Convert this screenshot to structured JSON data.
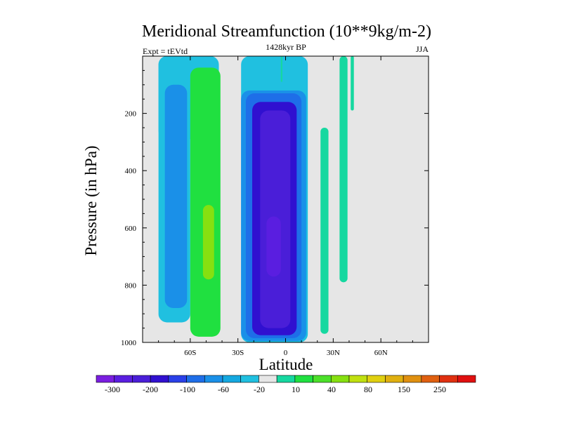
{
  "chart_data": {
    "type": "contour",
    "title": "Meridional Streamfunction (10**9kg/m-2)",
    "left_label": "Expt = tEVtd",
    "center_label": "1428kyr BP",
    "right_label": "JJA",
    "xlabel": "Latitude",
    "ylabel": "Pressure (in hPa)",
    "xlim": [
      -90,
      90
    ],
    "ylim": [
      1000,
      0
    ],
    "x_ticks": [
      {
        "value": -60,
        "label": "60S"
      },
      {
        "value": -30,
        "label": "30S"
      },
      {
        "value": 0,
        "label": "0"
      },
      {
        "value": 30,
        "label": "30N"
      },
      {
        "value": 60,
        "label": "60N"
      }
    ],
    "y_ticks": [
      {
        "value": 200,
        "label": "200"
      },
      {
        "value": 400,
        "label": "400"
      },
      {
        "value": 600,
        "label": "600"
      },
      {
        "value": 800,
        "label": "800"
      },
      {
        "value": 1000,
        "label": "1000"
      }
    ],
    "background_color": "#e6e6e6",
    "colorbar": {
      "colors": [
        "#7a1ee0",
        "#5a1ee0",
        "#4a1ed8",
        "#3010d0",
        "#2a40e8",
        "#1e6ee8",
        "#1a90e8",
        "#14a8e0",
        "#20c0e0",
        "#e6e6e6",
        "#16d8a0",
        "#20e040",
        "#4ce02a",
        "#86e010",
        "#c0e010",
        "#e0d010",
        "#e0b010",
        "#e09010",
        "#e06010",
        "#e03010",
        "#e01010"
      ],
      "labels": [
        "-300",
        "-200",
        "-100",
        "-60",
        "-20",
        "10",
        "40",
        "80",
        "150",
        "250"
      ]
    },
    "regions": [
      {
        "name": "sh-upper-cyan",
        "lat": [
          -80,
          -42
        ],
        "p": [
          0,
          290
        ],
        "color": "#20c0e0"
      },
      {
        "name": "sh-outer-cyan",
        "lat": [
          -80,
          -60
        ],
        "p": [
          0,
          930
        ],
        "color": "#20c0e0"
      },
      {
        "name": "sh-blue",
        "lat": [
          -76,
          -62
        ],
        "p": [
          100,
          880
        ],
        "color": "#1a90e8"
      },
      {
        "name": "sh-green",
        "lat": [
          -60,
          -41
        ],
        "p": [
          40,
          980
        ],
        "color": "#20e040"
      },
      {
        "name": "sh-yellowgreen",
        "lat": [
          -52,
          -45
        ],
        "p": [
          520,
          780
        ],
        "color": "#86e010"
      },
      {
        "name": "trop-cyan",
        "lat": [
          -28,
          14
        ],
        "p": [
          0,
          1000
        ],
        "color": "#20c0e0"
      },
      {
        "name": "trop-blue1",
        "lat": [
          -28,
          13
        ],
        "p": [
          120,
          995
        ],
        "color": "#1a90e8"
      },
      {
        "name": "trop-blue2",
        "lat": [
          -25,
          10
        ],
        "p": [
          130,
          985
        ],
        "color": "#1e6ee8"
      },
      {
        "name": "trop-blue3",
        "lat": [
          -21,
          7
        ],
        "p": [
          160,
          975
        ],
        "color": "#3010d0"
      },
      {
        "name": "trop-core",
        "lat": [
          -16,
          3
        ],
        "p": [
          190,
          950
        ],
        "color": "#4a1ed8"
      },
      {
        "name": "trop-innercore",
        "lat": [
          -12,
          -3
        ],
        "p": [
          560,
          770
        ],
        "color": "#5a1ee0"
      },
      {
        "name": "nh-teal-1",
        "lat": [
          22,
          27
        ],
        "p": [
          250,
          970
        ],
        "color": "#16d8a0"
      },
      {
        "name": "nh-teal-2",
        "lat": [
          34,
          39
        ],
        "p": [
          0,
          790
        ],
        "color": "#16d8a0"
      },
      {
        "name": "nh-teal-3",
        "lat": [
          41,
          43
        ],
        "p": [
          0,
          190
        ],
        "color": "#16d8a0"
      },
      {
        "name": "eq-teal-thin",
        "lat": [
          -3,
          -2
        ],
        "p": [
          0,
          90
        ],
        "color": "#16d8a0"
      }
    ]
  }
}
